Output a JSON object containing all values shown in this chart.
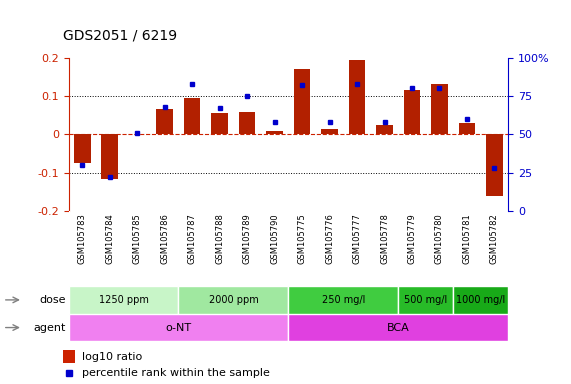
{
  "title": "GDS2051 / 6219",
  "samples": [
    "GSM105783",
    "GSM105784",
    "GSM105785",
    "GSM105786",
    "GSM105787",
    "GSM105788",
    "GSM105789",
    "GSM105790",
    "GSM105775",
    "GSM105776",
    "GSM105777",
    "GSM105778",
    "GSM105779",
    "GSM105780",
    "GSM105781",
    "GSM105782"
  ],
  "log10_ratio": [
    -0.075,
    -0.115,
    0.0,
    0.065,
    0.095,
    0.055,
    0.058,
    0.01,
    0.17,
    0.015,
    0.195,
    0.025,
    0.115,
    0.13,
    0.03,
    -0.16
  ],
  "percentile_rank": [
    30,
    22,
    51,
    68,
    83,
    67,
    75,
    58,
    82,
    58,
    83,
    58,
    80,
    80,
    60,
    28
  ],
  "bar_color": "#b22000",
  "dot_color": "#0000cc",
  "dose_colors": [
    "#c8f5c8",
    "#a0e8a0",
    "#40cc40",
    "#28bb28",
    "#18aa18"
  ],
  "dose_groups": [
    {
      "label": "1250 ppm",
      "start": 0,
      "end": 3
    },
    {
      "label": "2000 ppm",
      "start": 4,
      "end": 7
    },
    {
      "label": "250 mg/l",
      "start": 8,
      "end": 11
    },
    {
      "label": "500 mg/l",
      "start": 12,
      "end": 13
    },
    {
      "label": "1000 mg/l",
      "start": 14,
      "end": 15
    }
  ],
  "agent_colors": [
    "#f080f0",
    "#e040e0"
  ],
  "agent_groups": [
    {
      "label": "o-NT",
      "start": 0,
      "end": 7
    },
    {
      "label": "BCA",
      "start": 8,
      "end": 15
    }
  ],
  "legend_bar_color": "#cc2200",
  "legend_dot_color": "#0000cc",
  "background_color": "#ffffff"
}
